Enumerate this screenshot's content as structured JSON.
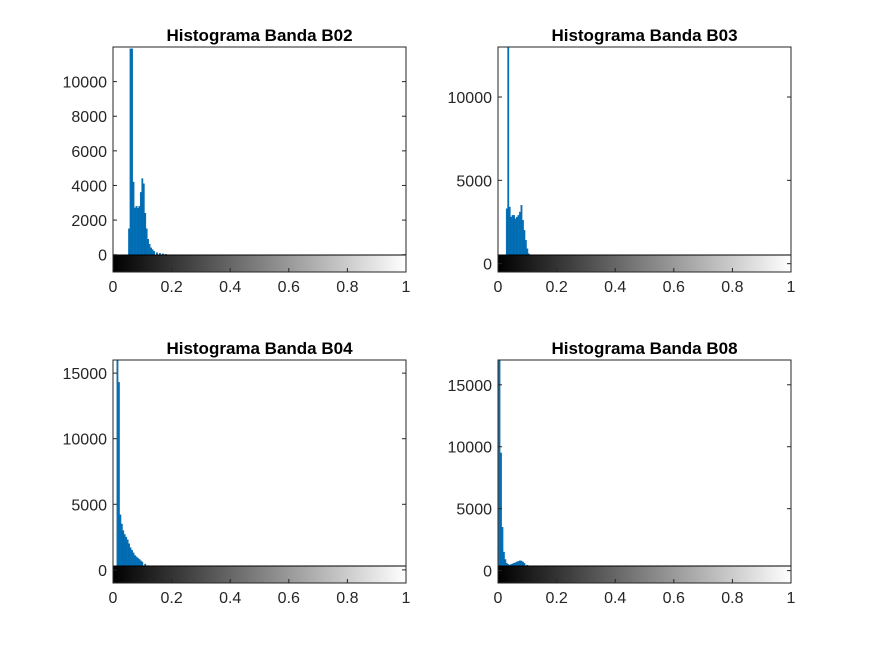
{
  "chart_data": [
    {
      "type": "bar",
      "title": "Histograma Banda B02",
      "xlabel": "",
      "ylabel": "",
      "xlim": [
        0,
        1
      ],
      "ylim": [
        -1000,
        12000
      ],
      "x_ticks": [
        "0",
        "0.2",
        "0.4",
        "0.6",
        "0.8",
        "1"
      ],
      "y_ticks": [
        0,
        2000,
        4000,
        6000,
        8000,
        10000
      ],
      "grayscale_colorbar": true,
      "bar_color": "#0072BD",
      "x": [
        0.055,
        0.06,
        0.065,
        0.07,
        0.075,
        0.08,
        0.085,
        0.09,
        0.095,
        0.1,
        0.105,
        0.11,
        0.115,
        0.12,
        0.125,
        0.13,
        0.135,
        0.14,
        0.15,
        0.16,
        0.17,
        0.18
      ],
      "values": [
        1500,
        11900,
        11900,
        4200,
        2700,
        2800,
        2700,
        2800,
        3600,
        4400,
        4100,
        2400,
        1500,
        900,
        600,
        400,
        300,
        200,
        120,
        80,
        50,
        30
      ]
    },
    {
      "type": "bar",
      "title": "Histograma Banda B03",
      "xlabel": "",
      "ylabel": "",
      "xlim": [
        0,
        1
      ],
      "ylim": [
        -500,
        13000
      ],
      "x_ticks": [
        "0",
        "0.2",
        "0.4",
        "0.6",
        "0.8",
        "1"
      ],
      "y_ticks": [
        0,
        5000,
        10000
      ],
      "grayscale_colorbar": true,
      "bar_color": "#0072BD",
      "x": [
        0.03,
        0.035,
        0.04,
        0.045,
        0.05,
        0.055,
        0.06,
        0.065,
        0.07,
        0.075,
        0.08,
        0.085,
        0.09,
        0.095,
        0.1,
        0.105,
        0.11,
        0.12,
        0.13,
        0.14,
        0.15
      ],
      "values": [
        3300,
        13000,
        3400,
        2800,
        2900,
        2900,
        2700,
        2800,
        2900,
        3100,
        3500,
        2600,
        2000,
        1400,
        900,
        600,
        400,
        250,
        150,
        80,
        40
      ]
    },
    {
      "type": "bar",
      "title": "Histograma Banda B04",
      "xlabel": "",
      "ylabel": "",
      "xlim": [
        0,
        1
      ],
      "ylim": [
        -1000,
        16000
      ],
      "x_ticks": [
        "0",
        "0.2",
        "0.4",
        "0.6",
        "0.8",
        "1"
      ],
      "y_ticks": [
        0,
        5000,
        10000,
        15000
      ],
      "grayscale_colorbar": true,
      "bar_color": "#0072BD",
      "x": [
        0.015,
        0.02,
        0.025,
        0.03,
        0.035,
        0.04,
        0.045,
        0.05,
        0.055,
        0.06,
        0.065,
        0.07,
        0.075,
        0.08,
        0.085,
        0.09,
        0.095,
        0.1,
        0.11,
        0.12,
        0.13,
        0.14,
        0.15,
        0.16,
        0.17,
        0.18
      ],
      "values": [
        16000,
        14300,
        4200,
        3500,
        3000,
        2700,
        2500,
        2300,
        2000,
        1700,
        1500,
        1300,
        1100,
        1000,
        900,
        800,
        700,
        600,
        450,
        330,
        250,
        180,
        120,
        80,
        50,
        30
      ]
    },
    {
      "type": "bar",
      "title": "Histograma Banda B08",
      "xlabel": "",
      "ylabel": "",
      "xlim": [
        0,
        1
      ],
      "ylim": [
        -1000,
        17000
      ],
      "x_ticks": [
        "0",
        "0.2",
        "0.4",
        "0.6",
        "0.8",
        "1"
      ],
      "y_ticks": [
        0,
        5000,
        10000,
        15000
      ],
      "grayscale_colorbar": true,
      "bar_color": "#0072BD",
      "x": [
        0.005,
        0.01,
        0.015,
        0.02,
        0.025,
        0.03,
        0.035,
        0.04,
        0.045,
        0.05,
        0.055,
        0.06,
        0.065,
        0.07,
        0.075,
        0.08,
        0.085,
        0.09,
        0.1,
        0.11,
        0.12,
        0.13,
        0.14,
        0.15,
        0.16
      ],
      "values": [
        17000,
        9500,
        3500,
        1500,
        900,
        600,
        500,
        450,
        500,
        550,
        600,
        650,
        700,
        750,
        800,
        780,
        700,
        600,
        450,
        300,
        200,
        130,
        80,
        50,
        30
      ]
    }
  ]
}
